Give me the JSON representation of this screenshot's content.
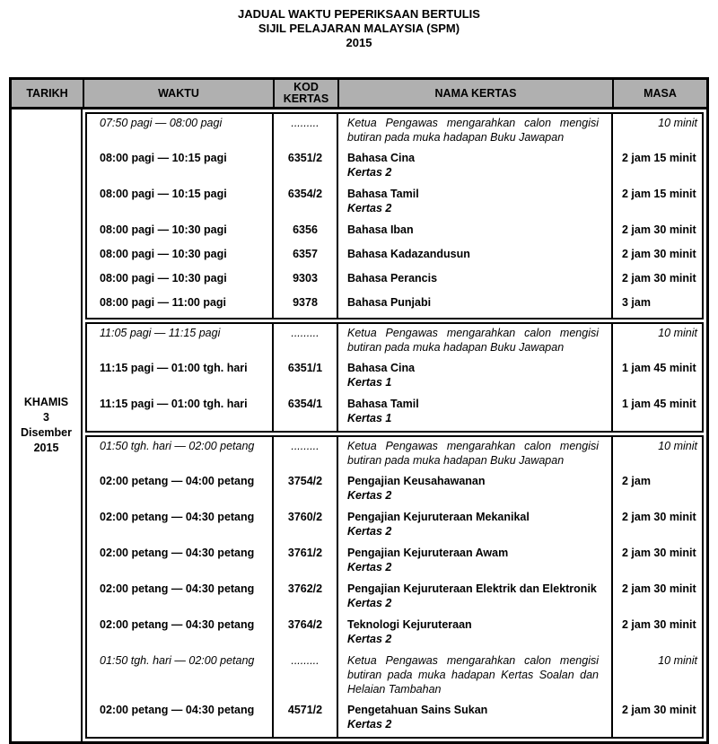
{
  "title": {
    "line1": "JADUAL WAKTU PEPERIKSAAN BERTULIS",
    "line2": "SIJIL PELAJARAN MALAYSIA (SPM)",
    "line3": "2015"
  },
  "header": {
    "tarikh": "TARIKH",
    "waktu": "WAKTU",
    "kod_line1": "KOD",
    "kod_line2": "KERTAS",
    "nama": "NAMA KERTAS",
    "masa": "MASA"
  },
  "tarikh": {
    "day": "KHAMIS",
    "date": "3",
    "month": "Disember",
    "year": "2015"
  },
  "colors": {
    "header_bg": "#b0b0b0",
    "border": "#000000",
    "text": "#000000"
  },
  "sections": [
    {
      "rows": [
        {
          "type": "sup",
          "waktu": "07:50 pagi — 08:00 pagi",
          "kod": ".........",
          "nama": "Ketua Pengawas mengarahkan calon mengisi butiran pada muka hadapan Buku Jawapan",
          "kertas": "",
          "masa": "10 minit"
        },
        {
          "type": "exam",
          "waktu": "08:00 pagi — 10:15 pagi",
          "kod": "6351/2",
          "nama": "Bahasa Cina",
          "kertas": "Kertas 2",
          "masa": "2 jam 15 minit"
        },
        {
          "type": "exam",
          "waktu": "08:00 pagi — 10:15 pagi",
          "kod": "6354/2",
          "nama": "Bahasa Tamil",
          "kertas": "Kertas 2",
          "masa": "2 jam 15 minit"
        },
        {
          "type": "exam",
          "waktu": "08:00 pagi — 10:30 pagi",
          "kod": "6356",
          "nama": "Bahasa Iban",
          "kertas": "",
          "masa": "2 jam 30 minit"
        },
        {
          "type": "exam",
          "waktu": "08:00 pagi — 10:30 pagi",
          "kod": "6357",
          "nama": "Bahasa Kadazandusun",
          "kertas": "",
          "masa": "2 jam 30 minit"
        },
        {
          "type": "exam",
          "waktu": "08:00 pagi — 10:30 pagi",
          "kod": "9303",
          "nama": "Bahasa Perancis",
          "kertas": "",
          "masa": "2 jam 30 minit"
        },
        {
          "type": "exam",
          "waktu": "08:00 pagi — 11:00 pagi",
          "kod": "9378",
          "nama": "Bahasa Punjabi",
          "kertas": "",
          "masa": "3 jam"
        }
      ]
    },
    {
      "rows": [
        {
          "type": "sup",
          "waktu": "11:05 pagi — 11:15 pagi",
          "kod": ".........",
          "nama": "Ketua Pengawas mengarahkan calon mengisi butiran pada muka hadapan Buku Jawapan",
          "kertas": "",
          "masa": "10 minit"
        },
        {
          "type": "exam",
          "waktu": "11:15 pagi — 01:00 tgh. hari",
          "kod": "6351/1",
          "nama": "Bahasa Cina",
          "kertas": "Kertas 1",
          "masa": "1 jam 45 minit"
        },
        {
          "type": "exam",
          "waktu": "11:15 pagi — 01:00 tgh. hari",
          "kod": "6354/1",
          "nama": "Bahasa Tamil",
          "kertas": "Kertas 1",
          "masa": "1 jam 45 minit"
        }
      ]
    },
    {
      "rows": [
        {
          "type": "sup",
          "waktu": "01:50 tgh. hari — 02:00 petang",
          "kod": ".........",
          "nama": "Ketua Pengawas mengarahkan calon mengisi butiran pada muka hadapan Buku Jawapan",
          "kertas": "",
          "masa": "10 minit"
        },
        {
          "type": "exam",
          "waktu": "02:00 petang — 04:00 petang",
          "kod": "3754/2",
          "nama": "Pengajian Keusahawanan",
          "kertas": "Kertas 2",
          "masa": "2 jam"
        },
        {
          "type": "exam",
          "waktu": "02:00 petang — 04:30 petang",
          "kod": "3760/2",
          "nama": "Pengajian Kejuruteraan Mekanikal",
          "kertas": "Kertas 2",
          "masa": "2 jam 30 minit"
        },
        {
          "type": "exam",
          "waktu": "02:00 petang — 04:30 petang",
          "kod": "3761/2",
          "nama": "Pengajian Kejuruteraan Awam",
          "kertas": "Kertas 2",
          "masa": "2 jam 30 minit"
        },
        {
          "type": "exam",
          "waktu": "02:00 petang — 04:30 petang",
          "kod": "3762/2",
          "nama": "Pengajian Kejuruteraan Elektrik dan Elektronik",
          "kertas": "Kertas 2",
          "masa": "2 jam 30 minit"
        },
        {
          "type": "exam",
          "waktu": "02:00 petang — 04:30 petang",
          "kod": "3764/2",
          "nama": "Teknologi Kejuruteraan",
          "kertas": "Kertas 2",
          "masa": "2 jam 30 minit"
        },
        {
          "type": "sup",
          "waktu": "01:50 tgh. hari — 02:00 petang",
          "kod": ".........",
          "nama": "Ketua Pengawas mengarahkan calon mengisi butiran pada muka hadapan Kertas Soalan dan Helaian Tambahan",
          "kertas": "",
          "masa": "10 minit"
        },
        {
          "type": "exam",
          "waktu": "02:00 petang — 04:30 petang",
          "kod": "4571/2",
          "nama": "Pengetahuan Sains Sukan",
          "kertas": "Kertas 2",
          "masa": "2 jam 30 minit"
        }
      ]
    }
  ]
}
